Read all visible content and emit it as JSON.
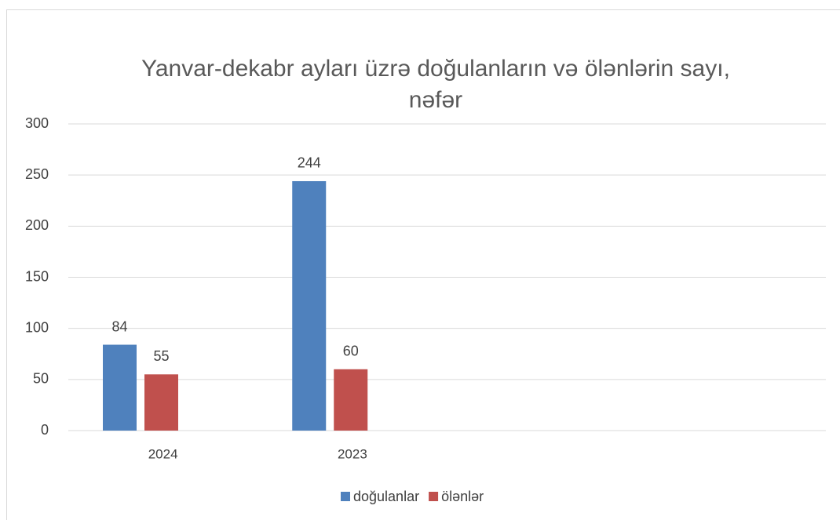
{
  "chart_data": {
    "type": "bar",
    "title": "Yanvar-dekabr ayları üzrə doğulanların və ölənlərin sayı, nəfər",
    "categories": [
      "2024",
      "2023",
      null,
      null
    ],
    "series": [
      {
        "name": "doğulanlar",
        "color": "#4f81bd",
        "values": [
          84,
          244,
          null,
          null
        ]
      },
      {
        "name": "ölənlər",
        "color": "#c0504d",
        "values": [
          55,
          60,
          null,
          null
        ]
      }
    ],
    "ylim": [
      0,
      300
    ],
    "yticks": [
      0,
      50,
      100,
      150,
      200,
      250,
      300
    ],
    "grid": true,
    "legend": "bottom"
  }
}
